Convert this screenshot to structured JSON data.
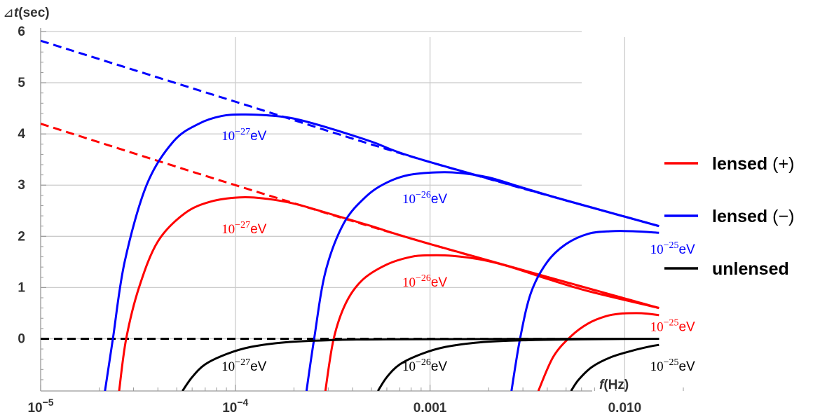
{
  "chart_data": {
    "type": "line",
    "xlabel": {
      "italic": "f",
      "rest": "(Hz)"
    },
    "ylabel": {
      "prefix": "⊿",
      "italic": "t",
      "rest": "(sec)"
    },
    "x_scale": "log",
    "xlim": [
      1e-05,
      0.02
    ],
    "ylim": [
      -1.02,
      6
    ],
    "x_ticks": [
      {
        "value": 1e-05,
        "base": "10",
        "exp": "−5"
      },
      {
        "value": 0.0001,
        "base": "10",
        "exp": "−4"
      },
      {
        "value": 0.001,
        "label": "0.001"
      },
      {
        "value": 0.01,
        "label": "0.010"
      }
    ],
    "y_ticks": [
      0,
      1,
      2,
      3,
      4,
      5,
      6
    ],
    "grid": true,
    "colors": {
      "plus": "#ff0000",
      "minus": "#0000ff",
      "unlensed": "#000000",
      "grid": "#cccccc",
      "axis": "#999999"
    },
    "series": [
      {
        "group": "plus",
        "style": "dashed",
        "points": [
          [
            1e-05,
            4.2
          ],
          [
            0.0001,
            3.0
          ],
          [
            0.001,
            1.85
          ],
          [
            0.015,
            0.6
          ]
        ]
      },
      {
        "group": "minus",
        "style": "dashed",
        "points": [
          [
            1e-05,
            5.82
          ],
          [
            0.0001,
            4.63
          ],
          [
            0.001,
            3.45
          ],
          [
            0.015,
            2.2
          ]
        ]
      },
      {
        "group": "unlensed",
        "style": "dashed",
        "points": [
          [
            1e-05,
            0
          ],
          [
            0.015,
            0
          ]
        ]
      },
      {
        "group": "minus",
        "style": "solid",
        "mass": "10^-27",
        "points": [
          [
            2.14e-05,
            -1.02
          ],
          [
            2.35e-05,
            0
          ],
          [
            2.7e-05,
            1.5
          ],
          [
            3.5e-05,
            3.0
          ],
          [
            4.8e-05,
            3.85
          ],
          [
            6.5e-05,
            4.2
          ],
          [
            8.5e-05,
            4.35
          ],
          [
            0.00011,
            4.38
          ],
          [
            0.00015,
            4.36
          ],
          [
            0.0002,
            4.3
          ],
          [
            0.0003,
            4.12
          ],
          [
            0.0005,
            3.85
          ],
          [
            0.001,
            3.45
          ],
          [
            0.015,
            2.2
          ]
        ]
      },
      {
        "group": "plus",
        "style": "solid",
        "mass": "10^-27",
        "points": [
          [
            2.53e-05,
            -1.02
          ],
          [
            2.75e-05,
            0
          ],
          [
            3.2e-05,
            1.0
          ],
          [
            4e-05,
            1.9
          ],
          [
            5.5e-05,
            2.45
          ],
          [
            7.5e-05,
            2.68
          ],
          [
            0.000105,
            2.76
          ],
          [
            0.00014,
            2.74
          ],
          [
            0.0002,
            2.64
          ],
          [
            0.0003,
            2.45
          ],
          [
            0.0005,
            2.2
          ],
          [
            0.001,
            1.85
          ],
          [
            0.015,
            0.6
          ]
        ]
      },
      {
        "group": "minus",
        "style": "solid",
        "mass": "10^-26",
        "points": [
          [
            0.000232,
            -1.02
          ],
          [
            0.000254,
            0
          ],
          [
            0.00029,
            1.3
          ],
          [
            0.00036,
            2.25
          ],
          [
            0.00047,
            2.78
          ],
          [
            0.0006,
            3.05
          ],
          [
            0.00078,
            3.2
          ],
          [
            0.00108,
            3.25
          ],
          [
            0.0014,
            3.24
          ],
          [
            0.002,
            3.15
          ],
          [
            0.003,
            2.95
          ],
          [
            0.005,
            2.7
          ],
          [
            0.015,
            2.2
          ]
        ]
      },
      {
        "group": "plus",
        "style": "solid",
        "mass": "10^-26",
        "points": [
          [
            0.00029,
            -1.02
          ],
          [
            0.00032,
            0
          ],
          [
            0.00037,
            0.7
          ],
          [
            0.00045,
            1.15
          ],
          [
            0.0006,
            1.45
          ],
          [
            0.0008,
            1.6
          ],
          [
            0.001,
            1.63
          ],
          [
            0.0013,
            1.62
          ],
          [
            0.0018,
            1.55
          ],
          [
            0.0025,
            1.42
          ],
          [
            0.004,
            1.17
          ],
          [
            0.0065,
            0.93
          ],
          [
            0.015,
            0.6
          ]
        ]
      },
      {
        "group": "minus",
        "style": "solid",
        "mass": "10^-25",
        "points": [
          [
            0.00262,
            -1.02
          ],
          [
            0.0029,
            0
          ],
          [
            0.0033,
            0.9
          ],
          [
            0.004,
            1.5
          ],
          [
            0.005,
            1.85
          ],
          [
            0.0065,
            2.05
          ],
          [
            0.0085,
            2.1
          ],
          [
            0.011,
            2.1
          ],
          [
            0.015,
            2.07
          ]
        ]
      },
      {
        "group": "plus",
        "style": "solid",
        "mass": "10^-25",
        "points": [
          [
            0.0036,
            -1.02
          ],
          [
            0.0043,
            -0.35
          ],
          [
            0.0053,
            0.05
          ],
          [
            0.0065,
            0.3
          ],
          [
            0.008,
            0.44
          ],
          [
            0.0095,
            0.49
          ],
          [
            0.0115,
            0.5
          ],
          [
            0.013,
            0.49
          ],
          [
            0.015,
            0.46
          ]
        ]
      },
      {
        "group": "unlensed",
        "style": "solid",
        "mass": "10^-27",
        "points": [
          [
            5.35e-05,
            -1.02
          ],
          [
            6e-05,
            -0.75
          ],
          [
            7e-05,
            -0.5
          ],
          [
            9e-05,
            -0.3
          ],
          [
            0.00012,
            -0.16
          ],
          [
            0.00018,
            -0.07
          ],
          [
            0.0003,
            -0.03
          ],
          [
            0.0006,
            -0.01
          ],
          [
            0.015,
            0
          ]
        ]
      },
      {
        "group": "unlensed",
        "style": "solid",
        "mass": "10^-26",
        "points": [
          [
            0.00054,
            -1.02
          ],
          [
            0.0006,
            -0.75
          ],
          [
            0.0007,
            -0.5
          ],
          [
            0.0009,
            -0.3
          ],
          [
            0.0012,
            -0.16
          ],
          [
            0.0018,
            -0.07
          ],
          [
            0.003,
            -0.03
          ],
          [
            0.006,
            -0.01
          ],
          [
            0.015,
            0
          ]
        ]
      },
      {
        "group": "unlensed",
        "style": "solid",
        "mass": "10^-25",
        "points": [
          [
            0.0053,
            -1.02
          ],
          [
            0.0058,
            -0.8
          ],
          [
            0.0068,
            -0.55
          ],
          [
            0.0085,
            -0.36
          ],
          [
            0.011,
            -0.23
          ],
          [
            0.0135,
            -0.15
          ],
          [
            0.015,
            -0.12
          ]
        ]
      }
    ],
    "annotations": [
      {
        "group": "minus",
        "base": "10",
        "exp": "−27",
        "unit": "eV",
        "at": [
          8.5e-05,
          3.88
        ]
      },
      {
        "group": "minus",
        "base": "10",
        "exp": "−26",
        "unit": "eV",
        "at": [
          0.00072,
          2.65
        ]
      },
      {
        "group": "minus",
        "base": "10",
        "exp": "−25",
        "unit": "eV",
        "at": [
          0.0135,
          1.66
        ]
      },
      {
        "group": "plus",
        "base": "10",
        "exp": "−27",
        "unit": "eV",
        "at": [
          8.5e-05,
          2.06
        ]
      },
      {
        "group": "plus",
        "base": "10",
        "exp": "−26",
        "unit": "eV",
        "at": [
          0.00072,
          1.02
        ]
      },
      {
        "group": "plus",
        "base": "10",
        "exp": "−25",
        "unit": "eV",
        "at": [
          0.0135,
          0.15
        ]
      },
      {
        "group": "unlensed",
        "base": "10",
        "exp": "−27",
        "unit": "eV",
        "at": [
          8.5e-05,
          -0.62
        ]
      },
      {
        "group": "unlensed",
        "base": "10",
        "exp": "−26",
        "unit": "eV",
        "at": [
          0.00072,
          -0.62
        ]
      },
      {
        "group": "unlensed",
        "base": "10",
        "exp": "−25",
        "unit": "eV",
        "at": [
          0.0135,
          -0.62
        ]
      }
    ],
    "legend": {
      "placement": "right",
      "entries": [
        {
          "group": "plus",
          "bold": "lensed",
          "rest": " (+)"
        },
        {
          "group": "minus",
          "bold": "lensed",
          "rest": " (−)"
        },
        {
          "group": "unlensed",
          "bold": "unlensed",
          "rest": ""
        }
      ]
    }
  }
}
